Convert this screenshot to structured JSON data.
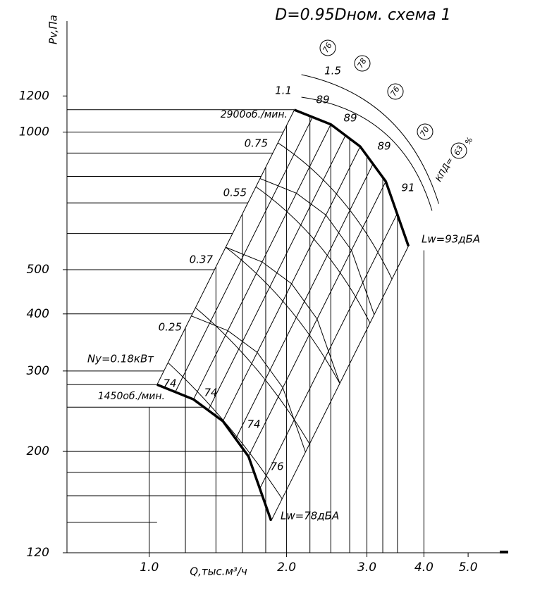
{
  "chart_data": {
    "type": "fan-curve",
    "title": "D=0.95Dном. схема 1",
    "y_label": "Pv,Па",
    "x_label": "Q,тыс.м³/ч",
    "log_x": true,
    "log_y": true,
    "xlim": [
      0.66,
      6.1
    ],
    "ylim": [
      120,
      1750
    ],
    "xticks": [
      {
        "value": 1,
        "label": "1.0"
      },
      {
        "value": 2,
        "label": "2.0"
      },
      {
        "value": 3,
        "label": "3.0"
      },
      {
        "value": 4,
        "label": "4.0"
      },
      {
        "value": 5,
        "label": "5.0"
      }
    ],
    "yticks": [
      120,
      200,
      300,
      400,
      500,
      1000,
      1200
    ],
    "x_grid": [
      1.0,
      1.2,
      1.4,
      1.6,
      1.8,
      2.0,
      2.25,
      2.5,
      2.75,
      3.0,
      3.25,
      3.5,
      4.0
    ],
    "y_grid": [
      140,
      160,
      180,
      200,
      250,
      280,
      300,
      400,
      500,
      600,
      700,
      800,
      900,
      1000,
      1120
    ],
    "series": [
      {
        "name": "2900об./мин.",
        "color": "#000000",
        "x": [
          2.08,
          2.5,
          2.9,
          3.3,
          3.7
        ],
        "values": [
          1119,
          1040,
          930,
          780,
          563
        ]
      },
      {
        "name": "1450об./мин.",
        "color": "#000000",
        "x": [
          1.04,
          1.25,
          1.45,
          1.65,
          1.85
        ],
        "values": [
          280,
          260,
          233,
          195,
          141
        ]
      }
    ],
    "power_labels": [
      "Ny=0.18кВт",
      "0.25",
      "0.37",
      "0.55",
      "0.75",
      "1.1",
      "1.5"
    ],
    "efficiency_1450": [
      "74",
      "74",
      "74",
      "76"
    ],
    "efficiency_2900": [
      "89",
      "89",
      "89",
      "91"
    ],
    "efficiency_circled": [
      "76",
      "78",
      "76",
      "70",
      "63"
    ],
    "efficiency_prefix": "КПД=",
    "efficiency_unit": "%",
    "noise_labels": [
      "Lw=93дБА",
      "Lw=78дБА"
    ]
  }
}
